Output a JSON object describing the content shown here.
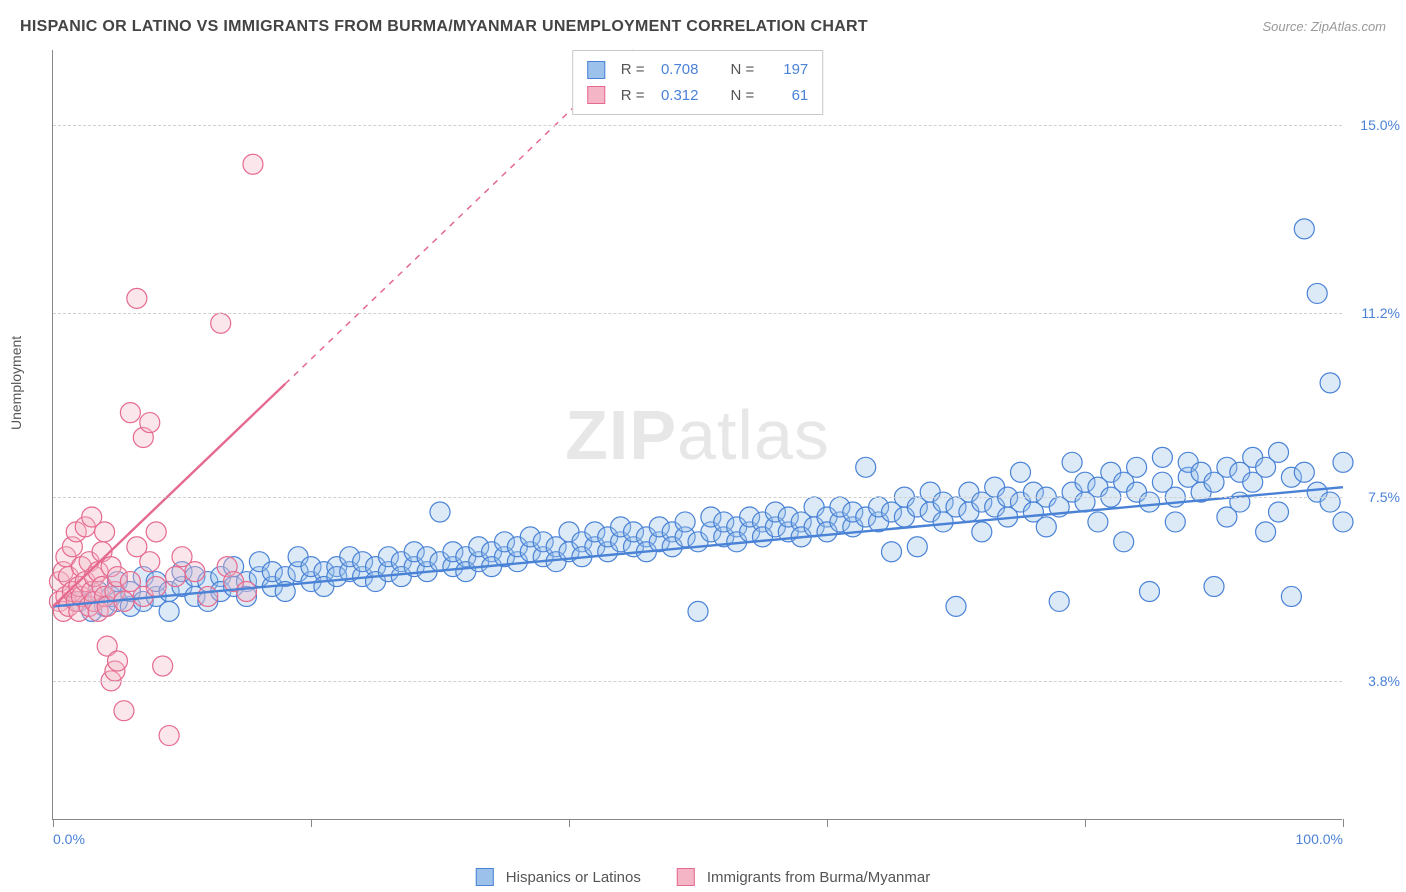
{
  "title": "HISPANIC OR LATINO VS IMMIGRANTS FROM BURMA/MYANMAR UNEMPLOYMENT CORRELATION CHART",
  "source": "Source: ZipAtlas.com",
  "ylabel": "Unemployment",
  "watermark_bold": "ZIP",
  "watermark_rest": "atlas",
  "chart": {
    "type": "scatter",
    "background_color": "#ffffff",
    "grid_color": "#d0d0d0",
    "axis_color": "#888888",
    "xlim": [
      0,
      100
    ],
    "ylim": [
      1.0,
      16.5
    ],
    "x_ticks": [
      0,
      20,
      40,
      60,
      80,
      100
    ],
    "x_tick_labels": {
      "0": "0.0%",
      "100": "100.0%"
    },
    "y_gridlines": [
      3.8,
      7.5,
      11.2,
      15.0
    ],
    "y_tick_labels": [
      "3.8%",
      "7.5%",
      "11.2%",
      "15.0%"
    ],
    "marker_radius": 10,
    "marker_fill_opacity": 0.35,
    "marker_stroke_width": 1.2,
    "trend_line_width": 2.4
  },
  "series": [
    {
      "name": "Hispanics or Latinos",
      "color_fill": "#9cc2ec",
      "color_stroke": "#4a82d6",
      "trend": {
        "x1": 0,
        "y1": 5.3,
        "x2": 100,
        "y2": 7.7,
        "solid_until_x": 100
      },
      "stats": {
        "R": "0.708",
        "N": "197"
      },
      "points": [
        [
          2,
          5.4
        ],
        [
          3,
          5.2
        ],
        [
          3.5,
          5.6
        ],
        [
          4,
          5.3
        ],
        [
          4.5,
          5.5
        ],
        [
          5,
          5.4
        ],
        [
          5,
          5.8
        ],
        [
          6,
          5.3
        ],
        [
          6,
          5.6
        ],
        [
          7,
          5.4
        ],
        [
          7,
          5.9
        ],
        [
          8,
          5.5
        ],
        [
          8,
          5.8
        ],
        [
          9,
          5.6
        ],
        [
          9,
          5.2
        ],
        [
          10,
          5.7
        ],
        [
          10,
          6.0
        ],
        [
          11,
          5.5
        ],
        [
          11,
          5.9
        ],
        [
          12,
          5.8
        ],
        [
          12,
          5.4
        ],
        [
          13,
          5.9
        ],
        [
          13,
          5.6
        ],
        [
          14,
          5.7
        ],
        [
          14,
          6.1
        ],
        [
          15,
          5.8
        ],
        [
          15,
          5.5
        ],
        [
          16,
          5.9
        ],
        [
          16,
          6.2
        ],
        [
          17,
          5.7
        ],
        [
          17,
          6.0
        ],
        [
          18,
          5.9
        ],
        [
          18,
          5.6
        ],
        [
          19,
          6.0
        ],
        [
          19,
          6.3
        ],
        [
          20,
          5.8
        ],
        [
          20,
          6.1
        ],
        [
          21,
          6.0
        ],
        [
          21,
          5.7
        ],
        [
          22,
          6.1
        ],
        [
          22,
          5.9
        ],
        [
          23,
          6.0
        ],
        [
          23,
          6.3
        ],
        [
          24,
          5.9
        ],
        [
          24,
          6.2
        ],
        [
          25,
          6.1
        ],
        [
          25,
          5.8
        ],
        [
          26,
          6.0
        ],
        [
          26,
          6.3
        ],
        [
          27,
          6.2
        ],
        [
          27,
          5.9
        ],
        [
          28,
          6.1
        ],
        [
          28,
          6.4
        ],
        [
          29,
          6.0
        ],
        [
          29,
          6.3
        ],
        [
          30,
          6.2
        ],
        [
          30,
          7.2
        ],
        [
          31,
          6.1
        ],
        [
          31,
          6.4
        ],
        [
          32,
          6.3
        ],
        [
          32,
          6.0
        ],
        [
          33,
          6.2
        ],
        [
          33,
          6.5
        ],
        [
          34,
          6.4
        ],
        [
          34,
          6.1
        ],
        [
          35,
          6.3
        ],
        [
          35,
          6.6
        ],
        [
          36,
          6.2
        ],
        [
          36,
          6.5
        ],
        [
          37,
          6.4
        ],
        [
          37,
          6.7
        ],
        [
          38,
          6.3
        ],
        [
          38,
          6.6
        ],
        [
          39,
          6.5
        ],
        [
          39,
          6.2
        ],
        [
          40,
          6.4
        ],
        [
          40,
          6.8
        ],
        [
          41,
          6.6
        ],
        [
          41,
          6.3
        ],
        [
          42,
          6.5
        ],
        [
          42,
          6.8
        ],
        [
          43,
          6.4
        ],
        [
          43,
          6.7
        ],
        [
          44,
          6.6
        ],
        [
          44,
          6.9
        ],
        [
          45,
          6.5
        ],
        [
          45,
          6.8
        ],
        [
          46,
          6.7
        ],
        [
          46,
          6.4
        ],
        [
          47,
          6.6
        ],
        [
          47,
          6.9
        ],
        [
          48,
          6.8
        ],
        [
          48,
          6.5
        ],
        [
          49,
          6.7
        ],
        [
          49,
          7.0
        ],
        [
          50,
          6.6
        ],
        [
          50,
          5.2
        ],
        [
          51,
          6.8
        ],
        [
          51,
          7.1
        ],
        [
          52,
          6.7
        ],
        [
          52,
          7.0
        ],
        [
          53,
          6.9
        ],
        [
          53,
          6.6
        ],
        [
          54,
          6.8
        ],
        [
          54,
          7.1
        ],
        [
          55,
          7.0
        ],
        [
          55,
          6.7
        ],
        [
          56,
          6.9
        ],
        [
          56,
          7.2
        ],
        [
          57,
          6.8
        ],
        [
          57,
          7.1
        ],
        [
          58,
          7.0
        ],
        [
          58,
          6.7
        ],
        [
          59,
          6.9
        ],
        [
          59,
          7.3
        ],
        [
          60,
          7.1
        ],
        [
          60,
          6.8
        ],
        [
          61,
          7.0
        ],
        [
          61,
          7.3
        ],
        [
          62,
          6.9
        ],
        [
          62,
          7.2
        ],
        [
          63,
          7.1
        ],
        [
          63,
          8.1
        ],
        [
          64,
          7.0
        ],
        [
          64,
          7.3
        ],
        [
          65,
          7.2
        ],
        [
          65,
          6.4
        ],
        [
          66,
          7.1
        ],
        [
          66,
          7.5
        ],
        [
          67,
          7.3
        ],
        [
          67,
          6.5
        ],
        [
          68,
          7.2
        ],
        [
          68,
          7.6
        ],
        [
          69,
          7.0
        ],
        [
          69,
          7.4
        ],
        [
          70,
          7.3
        ],
        [
          70,
          5.3
        ],
        [
          71,
          7.2
        ],
        [
          71,
          7.6
        ],
        [
          72,
          7.4
        ],
        [
          72,
          6.8
        ],
        [
          73,
          7.3
        ],
        [
          73,
          7.7
        ],
        [
          74,
          7.1
        ],
        [
          74,
          7.5
        ],
        [
          75,
          7.4
        ],
        [
          75,
          8.0
        ],
        [
          76,
          7.2
        ],
        [
          76,
          7.6
        ],
        [
          77,
          7.5
        ],
        [
          77,
          6.9
        ],
        [
          78,
          7.3
        ],
        [
          78,
          5.4
        ],
        [
          79,
          7.6
        ],
        [
          79,
          8.2
        ],
        [
          80,
          7.4
        ],
        [
          80,
          7.8
        ],
        [
          81,
          7.7
        ],
        [
          81,
          7.0
        ],
        [
          82,
          7.5
        ],
        [
          82,
          8.0
        ],
        [
          83,
          7.8
        ],
        [
          83,
          6.6
        ],
        [
          84,
          7.6
        ],
        [
          84,
          8.1
        ],
        [
          85,
          7.4
        ],
        [
          85,
          5.6
        ],
        [
          86,
          7.8
        ],
        [
          86,
          8.3
        ],
        [
          87,
          7.5
        ],
        [
          87,
          7.0
        ],
        [
          88,
          7.9
        ],
        [
          88,
          8.2
        ],
        [
          89,
          7.6
        ],
        [
          89,
          8.0
        ],
        [
          90,
          7.8
        ],
        [
          90,
          5.7
        ],
        [
          91,
          7.1
        ],
        [
          91,
          8.1
        ],
        [
          92,
          8.0
        ],
        [
          92,
          7.4
        ],
        [
          93,
          7.8
        ],
        [
          93,
          8.3
        ],
        [
          94,
          6.8
        ],
        [
          94,
          8.1
        ],
        [
          95,
          8.4
        ],
        [
          95,
          7.2
        ],
        [
          96,
          7.9
        ],
        [
          96,
          5.5
        ],
        [
          97,
          8.0
        ],
        [
          97,
          12.9
        ],
        [
          98,
          7.6
        ],
        [
          98,
          11.6
        ],
        [
          99,
          7.4
        ],
        [
          99,
          9.8
        ],
        [
          100,
          8.2
        ],
        [
          100,
          7.0
        ]
      ]
    },
    {
      "name": "Immigrants from Burma/Myanmar",
      "color_fill": "#f4b6c7",
      "color_stroke": "#e56a8f",
      "trend": {
        "x1": 0,
        "y1": 5.3,
        "x2": 45,
        "y2": 16.5,
        "solid_until_x": 18
      },
      "stats": {
        "R": "0.312",
        "N": "61"
      },
      "points": [
        [
          0.5,
          5.4
        ],
        [
          0.5,
          5.8
        ],
        [
          0.8,
          5.2
        ],
        [
          0.8,
          6.0
        ],
        [
          1.0,
          5.5
        ],
        [
          1.0,
          6.3
        ],
        [
          1.2,
          5.3
        ],
        [
          1.2,
          5.9
        ],
        [
          1.5,
          5.6
        ],
        [
          1.5,
          6.5
        ],
        [
          1.8,
          5.4
        ],
        [
          1.8,
          6.8
        ],
        [
          2.0,
          5.7
        ],
        [
          2.0,
          5.2
        ],
        [
          2.2,
          6.1
        ],
        [
          2.2,
          5.5
        ],
        [
          2.5,
          5.8
        ],
        [
          2.5,
          6.9
        ],
        [
          2.8,
          5.3
        ],
        [
          2.8,
          6.2
        ],
        [
          3.0,
          5.6
        ],
        [
          3.0,
          7.1
        ],
        [
          3.2,
          5.9
        ],
        [
          3.2,
          5.4
        ],
        [
          3.5,
          6.0
        ],
        [
          3.5,
          5.2
        ],
        [
          3.8,
          6.4
        ],
        [
          3.8,
          5.7
        ],
        [
          4.0,
          5.5
        ],
        [
          4.0,
          6.8
        ],
        [
          4.2,
          4.5
        ],
        [
          4.2,
          5.3
        ],
        [
          4.5,
          3.8
        ],
        [
          4.5,
          6.1
        ],
        [
          4.8,
          5.6
        ],
        [
          4.8,
          4.0
        ],
        [
          5.0,
          5.9
        ],
        [
          5.0,
          4.2
        ],
        [
          5.5,
          3.2
        ],
        [
          5.5,
          5.4
        ],
        [
          6.0,
          9.2
        ],
        [
          6.0,
          5.8
        ],
        [
          6.5,
          11.5
        ],
        [
          6.5,
          6.5
        ],
        [
          7.0,
          8.7
        ],
        [
          7.0,
          5.5
        ],
        [
          7.5,
          9.0
        ],
        [
          7.5,
          6.2
        ],
        [
          8.0,
          5.7
        ],
        [
          8.0,
          6.8
        ],
        [
          8.5,
          4.1
        ],
        [
          9.0,
          2.7
        ],
        [
          9.5,
          5.9
        ],
        [
          10.0,
          6.3
        ],
        [
          11.0,
          6.0
        ],
        [
          12.0,
          5.5
        ],
        [
          13.0,
          11.0
        ],
        [
          13.5,
          6.1
        ],
        [
          14.0,
          5.8
        ],
        [
          15.5,
          14.2
        ],
        [
          15.0,
          5.6
        ]
      ]
    }
  ],
  "stats_box": {
    "label_R": "R =",
    "label_N": "N ="
  },
  "legend": {
    "label1": "Hispanics or Latinos",
    "label2": "Immigrants from Burma/Myanmar"
  }
}
